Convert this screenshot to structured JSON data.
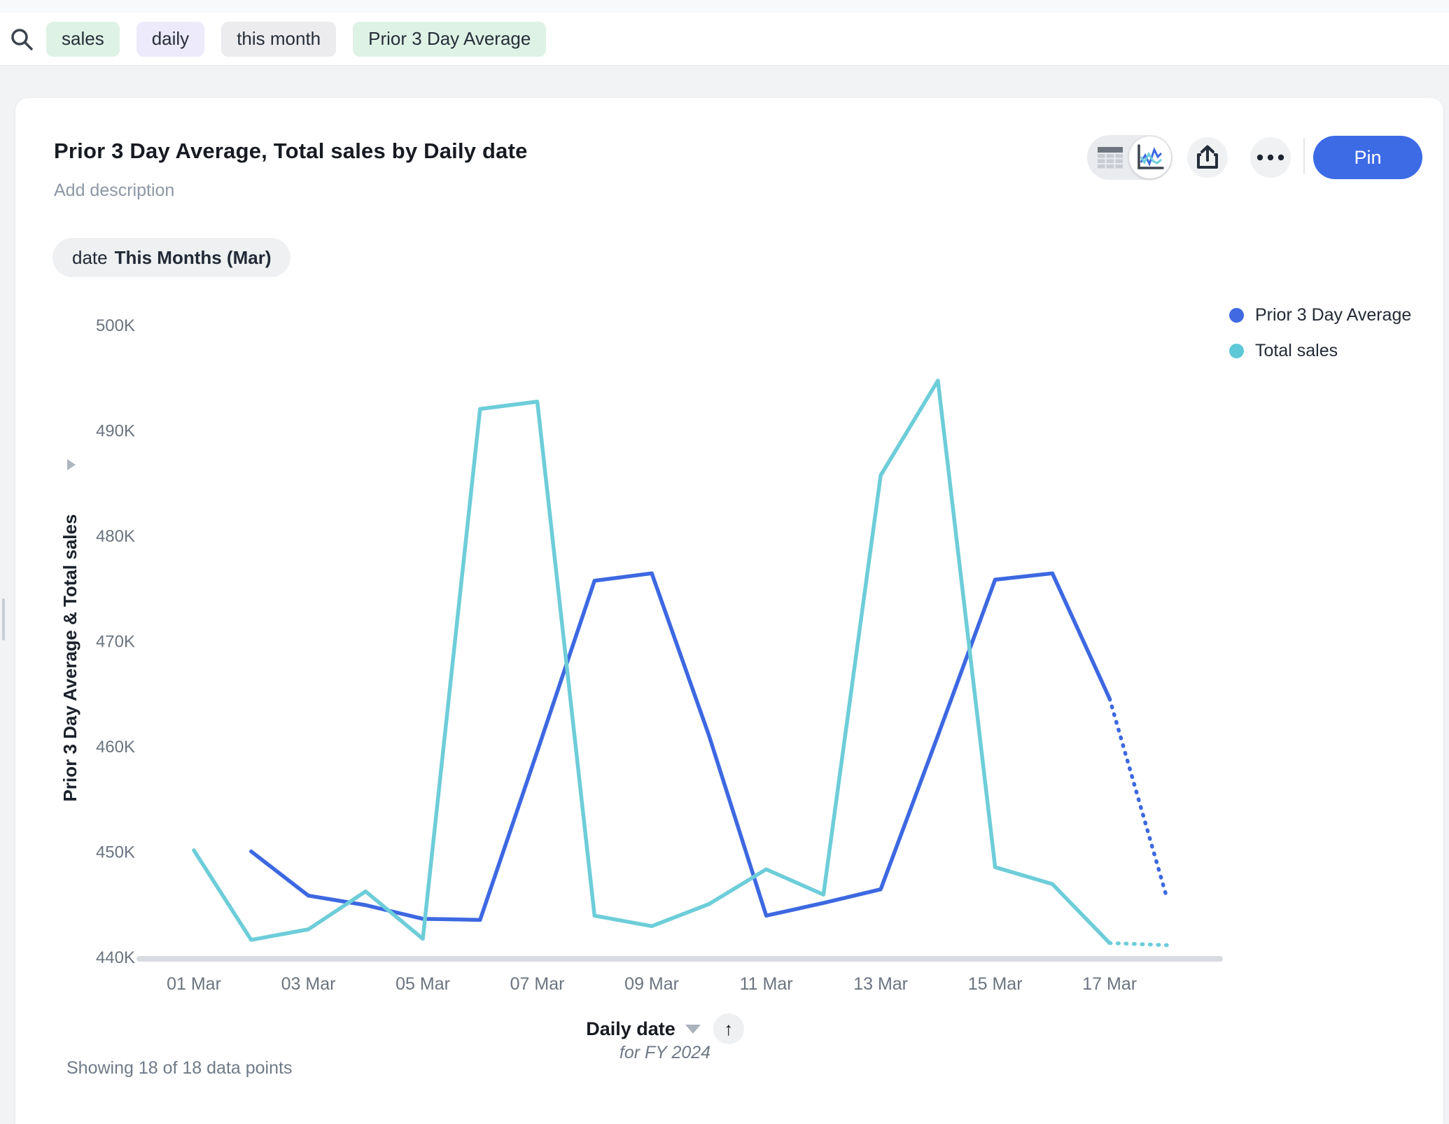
{
  "topbar": {
    "tokens": [
      {
        "text": "sales",
        "style": "green"
      },
      {
        "text": "daily",
        "style": "purple"
      },
      {
        "text": "this month",
        "style": "gray"
      },
      {
        "text": "Prior 3 Day Average",
        "style": "green"
      }
    ]
  },
  "header": {
    "title": "Prior 3 Day Average, Total sales by Daily date",
    "description_placeholder": "Add description",
    "pin_label": "Pin"
  },
  "filter_chip": {
    "prefix": "date",
    "value": "This Months (Mar)"
  },
  "legend": [
    {
      "label": "Prior 3 Day Average",
      "color": "#3d68e1"
    },
    {
      "label": "Total sales",
      "color": "#5ec8d8"
    }
  ],
  "chart_data": {
    "type": "line",
    "title": "Prior 3 Day Average, Total sales by Daily date",
    "categories": [
      "01 Mar",
      "02 Mar",
      "03 Mar",
      "04 Mar",
      "05 Mar",
      "06 Mar",
      "07 Mar",
      "08 Mar",
      "09 Mar",
      "10 Mar",
      "11 Mar",
      "12 Mar",
      "13 Mar",
      "14 Mar",
      "15 Mar",
      "16 Mar",
      "17 Mar",
      "18 Mar"
    ],
    "x_tick_labels": [
      "01 Mar",
      "03 Mar",
      "05 Mar",
      "07 Mar",
      "09 Mar",
      "11 Mar",
      "13 Mar",
      "15 Mar",
      "17 Mar"
    ],
    "y_ticks": [
      "500K",
      "490K",
      "480K",
      "470K",
      "460K",
      "450K",
      "440K"
    ],
    "ylim": [
      440000,
      500000
    ],
    "xlabel": "Daily date",
    "xlabel_sub": "for FY 2024",
    "ylabel": "Prior 3 Day Average & Total sales",
    "grid": false,
    "legend_position": "top-right",
    "series": [
      {
        "name": "Prior 3 Day Average",
        "color": "#3d68e1",
        "start_day": 2,
        "values_k": [
          450.0,
          445.8,
          444.9,
          443.6,
          443.5,
          459.5,
          475.7,
          476.4,
          461.0,
          443.9,
          445.1,
          446.4,
          461.0,
          475.8,
          476.4,
          464.5,
          445.6
        ],
        "dotted_tail_points": 2
      },
      {
        "name": "Total sales",
        "color": "#6dcdd9",
        "start_day": 1,
        "values_k": [
          450.1,
          441.6,
          442.6,
          446.2,
          441.7,
          492.0,
          492.7,
          443.9,
          442.9,
          445.0,
          448.3,
          445.9,
          485.7,
          494.7,
          448.5,
          446.9,
          441.3,
          441.1
        ],
        "dotted_tail_points": 2
      }
    ]
  },
  "footer": {
    "showing": "Showing 18 of 18 data points"
  }
}
